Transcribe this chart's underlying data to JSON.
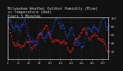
{
  "title": "Milwaukee Weather Outdoor Humidity (Blue)\nvs Temperature (Red)\nEvery 5 Minutes",
  "title_fontsize": 3.8,
  "bg_color": "#111111",
  "plot_bg_color": "#111111",
  "blue_color": "#2255ff",
  "red_color": "#ff2222",
  "title_color": "#cccccc",
  "tick_color": "#cccccc",
  "grid_color": "#444444",
  "ylim": [
    0,
    100
  ],
  "ytick_right": [
    20,
    40,
    60,
    80,
    100
  ],
  "ytick_right_labels": [
    "20",
    "40",
    "60",
    "80",
    "100"
  ],
  "n_points": 288,
  "seed": 7
}
